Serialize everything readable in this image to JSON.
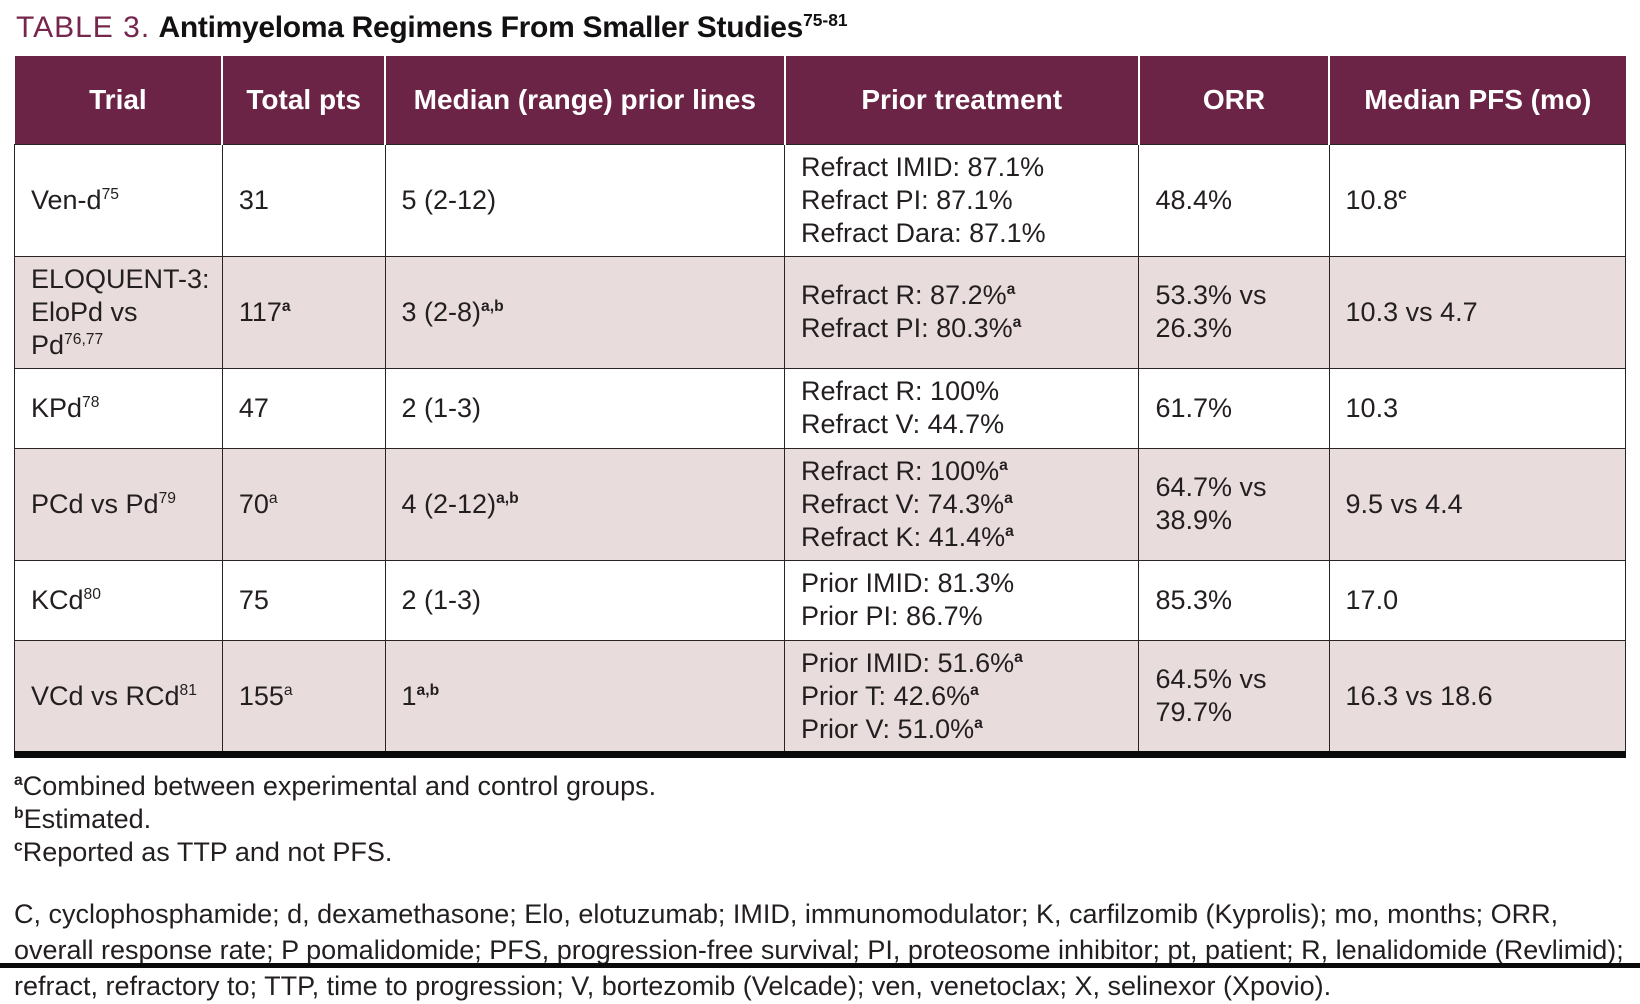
{
  "title": {
    "label": "TABLE 3.",
    "text": " Antimyeloma Regimens From Smaller Studies",
    "citation": "75-81"
  },
  "colors": {
    "header_bg": "#6B2346",
    "row_shade": "#E8DCDC",
    "title_accent": "#76254D",
    "text": "#231F20",
    "border": "#2A2425"
  },
  "table": {
    "columns": [
      "Trial",
      "Total pts",
      "Median (range) prior lines",
      "Prior treatment",
      "ORR",
      "Median PFS (mo)"
    ],
    "rows": [
      {
        "trial": "Ven-d^{75}",
        "total_pts": "31",
        "prior_lines": "5 (2-12)",
        "prior_treatment": "Refract IMID: 87.1%\nRefract PI: 87.1%\nRefract Dara: 87.1%",
        "orr": "48.4%",
        "median_pfs": "10.8*{c}"
      },
      {
        "trial": "ELOQUENT-3:\nEloPd vs Pd^{76,77}",
        "total_pts": "117*{a}",
        "prior_lines": "3 (2-8)*{a,b}",
        "prior_treatment": "Refract R: 87.2%*{a}\nRefract PI: 80.3%*{a}",
        "orr": "53.3% vs\n26.3%",
        "median_pfs": "10.3 vs 4.7"
      },
      {
        "trial": "KPd^{78}",
        "total_pts": "47",
        "prior_lines": "2 (1-3)",
        "prior_treatment": "Refract R: 100%\nRefract V: 44.7%",
        "orr": "61.7%",
        "median_pfs": "10.3"
      },
      {
        "trial": "PCd vs Pd^{79}",
        "total_pts": "70^{a}",
        "prior_lines": "4 (2-12)*{a,b}",
        "prior_treatment": "Refract R: 100%*{a}\nRefract V: 74.3%*{a}\nRefract K: 41.4%*{a}",
        "orr": "64.7% vs\n38.9%",
        "median_pfs": "9.5 vs 4.4"
      },
      {
        "trial": "KCd^{80}",
        "total_pts": "75",
        "prior_lines": "2 (1-3)",
        "prior_treatment": "Prior IMID: 81.3%\nPrior PI: 86.7%",
        "orr": "85.3%",
        "median_pfs": "17.0"
      },
      {
        "trial": "VCd vs RCd^{81}",
        "total_pts": "155^{a}",
        "prior_lines": "1*{a,b}",
        "prior_treatment": "Prior IMID: 51.6%*{a}\nPrior T: 42.6%*{a}\nPrior V: 51.0%*{a}",
        "orr": "64.5% vs\n79.7%",
        "median_pfs": "16.3 vs 18.6"
      }
    ]
  },
  "footnotes": [
    {
      "marker": "a",
      "text": "Combined between experimental and control groups."
    },
    {
      "marker": "b",
      "text": "Estimated."
    },
    {
      "marker": "c",
      "text": "Reported as TTP and not PFS."
    }
  ],
  "abbreviations": "C, cyclophosphamide; d, dexamethasone; Elo, elotuzumab; IMID, immunomodulator; K, carfilzomib (Kyprolis); mo, months; ORR, overall response rate; P pomalidomide; PFS, progression-free survival; PI, proteosome inhibitor; pt, patient; R, lenalidomide (Revlimid); refract, refractory to; TTP, time to progression; V, bortezomib (Velcade); ven, venetoclax; X, selinexor (Xpovio)."
}
